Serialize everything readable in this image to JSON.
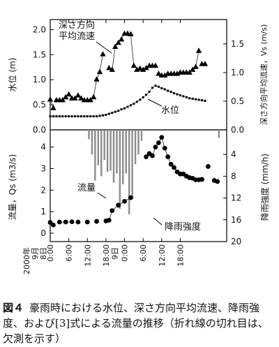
{
  "caption": {
    "number": "図４",
    "text": "豪雨時における水位、深さ方向平均流速、降雨強度、および[3]式による流量の推移（折れ線の切れ目は、欠測を示す）"
  },
  "chart_data": [
    {
      "type": "line",
      "ylabel_left": "水位 (m)",
      "ylabel_right": "深さ方向平均流速，Vs (m/s)",
      "ylim_left": [
        0,
        2.0
      ],
      "ylim_right": [
        0,
        1.75
      ],
      "yticks_left": [
        "0.0",
        "0.5",
        "1.0",
        "1.5",
        "2.0"
      ],
      "yticks_right": [
        "0.0",
        "0.5",
        "1.0",
        "1.5"
      ],
      "series": [
        {
          "name": "深さ方向平均流速",
          "axis": "right",
          "marker": "triangle",
          "segments": [
            [
              [
                0,
                0.53
              ],
              [
                1,
                0.38
              ]
            ],
            [
              [
                2,
                0.52
              ],
              [
                3,
                0.52
              ],
              [
                4,
                0.52
              ],
              [
                5,
                0.57
              ],
              [
                6,
                0.62
              ],
              [
                7,
                0.55
              ]
            ],
            [
              [
                8,
                0.55
              ],
              [
                9,
                0.6
              ],
              [
                10,
                0.55
              ],
              [
                11,
                0.52
              ]
            ],
            [
              [
                12,
                0.52
              ],
              [
                13,
                0.52
              ],
              [
                14,
                0.57
              ],
              [
                15,
                0.88
              ],
              [
                16,
                1.01
              ],
              [
                17,
                1.32
              ]
            ],
            [
              [
                19,
                1.08
              ],
              [
                20,
                1.05
              ],
              [
                21,
                1.45
              ],
              [
                22,
                1.52
              ],
              [
                23,
                1.58
              ],
              [
                24,
                1.68
              ],
              [
                25,
                1.68
              ],
              [
                26,
                1.67
              ],
              [
                27,
                1.12
              ]
            ],
            [
              [
                28,
                1.05
              ],
              [
                29,
                1.07
              ],
              [
                30,
                1.05
              ],
              [
                31,
                1.08
              ],
              [
                32,
                1.12
              ],
              [
                33,
                1.12
              ],
              [
                34,
                1.12
              ]
            ],
            [
              [
                35,
                0.98
              ],
              [
                36,
                0.95
              ]
            ],
            [
              [
                37,
                0.95
              ],
              [
                38,
                0.98
              ],
              [
                39,
                0.98
              ],
              [
                40,
                0.98
              ],
              [
                41,
                0.98
              ],
              [
                42,
                1.0
              ],
              [
                43,
                1.0
              ],
              [
                44,
                1.0
              ],
              [
                45,
                1.0
              ]
            ],
            [
              [
                46,
                1.05
              ],
              [
                47,
                1.1
              ],
              [
                48,
                1.38
              ]
            ],
            [
              [
                49,
                1.15
              ],
              [
                50,
                1.15
              ]
            ]
          ]
        },
        {
          "name": "水位",
          "axis": "left",
          "marker": "square",
          "x": [
            0,
            1,
            2,
            3,
            4,
            5,
            6,
            7,
            8,
            9,
            10,
            11,
            12,
            13,
            14,
            15,
            16,
            17,
            18,
            19,
            20,
            21,
            22,
            23,
            24,
            25,
            26,
            27,
            28,
            29,
            30,
            31,
            32,
            33,
            34,
            35,
            36,
            37,
            38,
            39,
            40,
            41,
            42,
            43,
            44,
            45,
            46,
            47,
            48,
            49,
            50
          ],
          "y": [
            0.27,
            0.27,
            0.27,
            0.27,
            0.27,
            0.27,
            0.27,
            0.27,
            0.27,
            0.27,
            0.27,
            0.27,
            0.27,
            0.27,
            0.27,
            0.27,
            0.28,
            0.29,
            0.3,
            0.32,
            0.34,
            0.36,
            0.38,
            0.41,
            0.43,
            0.46,
            0.49,
            0.52,
            0.56,
            0.6,
            0.65,
            0.7,
            0.76,
            0.84,
            0.88,
            0.86,
            0.83,
            0.81,
            0.78,
            0.76,
            0.73,
            0.71,
            0.69,
            0.67,
            0.65,
            0.63,
            0.62,
            0.61,
            0.6,
            0.59,
            0.58
          ]
        }
      ],
      "annotations": [
        "深さ方向\n平均流速",
        "水位"
      ]
    },
    {
      "type": "bar+line",
      "ylabel_left": "流量，Qs (m3/s)",
      "ylabel_right": "降雨強度 (mm/h)",
      "ylim_left": [
        0,
        4.8
      ],
      "ylim_right_reversed": [
        0,
        20
      ],
      "yticks_left": [
        "0",
        "1",
        "2",
        "3",
        "4"
      ],
      "yticks_right": [
        "4",
        "8",
        "12",
        "16",
        "20"
      ],
      "series": [
        {
          "name": "流量",
          "axis": "left",
          "marker": "circle",
          "segments": [
            [
              [
                0,
                0.5
              ],
              [
                1,
                0.38
              ]
            ],
            [
              [
                3,
                0.52
              ],
              [
                5,
                0.52
              ],
              [
                7,
                0.53
              ]
            ],
            [
              [
                9,
                0.52
              ]
            ],
            [
              [
                12,
                0.52
              ]
            ],
            [
              [
                15,
                0.55
              ]
            ],
            [
              [
                18,
                0.57
              ],
              [
                19,
                0.6
              ],
              [
                20,
                1.05
              ],
              [
                22,
                1.3
              ],
              [
                24,
                1.48
              ],
              [
                26,
                1.65
              ]
            ],
            [
              [
                31,
                3.55
              ],
              [
                32,
                3.7
              ],
              [
                33,
                3.6
              ],
              [
                34,
                4.0
              ],
              [
                35,
                4.2
              ],
              [
                36,
                4.45
              ],
              [
                37,
                3.95
              ],
              [
                38,
                3.55
              ],
              [
                39,
                3.2
              ],
              [
                40,
                3.05
              ],
              [
                41,
                2.85
              ],
              [
                42,
                2.75
              ],
              [
                43,
                2.75
              ],
              [
                44,
                2.65
              ],
              [
                45,
                2.58
              ]
            ],
            [
              [
                46,
                2.55
              ],
              [
                47,
                2.48
              ],
              [
                48,
                2.48
              ],
              [
                49,
                2.5
              ]
            ],
            [
              [
                51,
                3.1
              ]
            ],
            [
              [
                53,
                2.45
              ],
              [
                54,
                2.4
              ]
            ]
          ]
        },
        {
          "name": "降雨強度",
          "axis": "right",
          "bars": [
            {
              "x": 12.5,
              "v": 1.2
            },
            {
              "x": 13.5,
              "v": 4.0
            },
            {
              "x": 14.5,
              "v": 8.8
            },
            {
              "x": 15.5,
              "v": 6.0
            },
            {
              "x": 16.5,
              "v": 8.0
            },
            {
              "x": 17.5,
              "v": 5.0
            },
            {
              "x": 18.5,
              "v": 7.2
            },
            {
              "x": 19.5,
              "v": 7.0
            },
            {
              "x": 20.5,
              "v": 9.2
            },
            {
              "x": 21.5,
              "v": 7.5
            },
            {
              "x": 22.5,
              "v": 14.0
            },
            {
              "x": 23.5,
              "v": 9.5
            },
            {
              "x": 24.5,
              "v": 7.5
            },
            {
              "x": 25.5,
              "v": 15.0
            },
            {
              "x": 26.5,
              "v": 12.2
            },
            {
              "x": 27.5,
              "v": 5.8
            },
            {
              "x": 28.5,
              "v": 4.0
            },
            {
              "x": 29.5,
              "v": 1.5
            },
            {
              "x": 54.5,
              "v": 1.0
            }
          ]
        }
      ],
      "x_ticks": [
        "0:00",
        "6:00",
        "12:00",
        "18:00",
        "0:00",
        "6:00",
        "12:00",
        "18:00"
      ],
      "date_labels": [
        "2000年\n9月\n8日",
        "9日"
      ],
      "annotations": [
        "流量",
        "降雨強度"
      ]
    }
  ]
}
